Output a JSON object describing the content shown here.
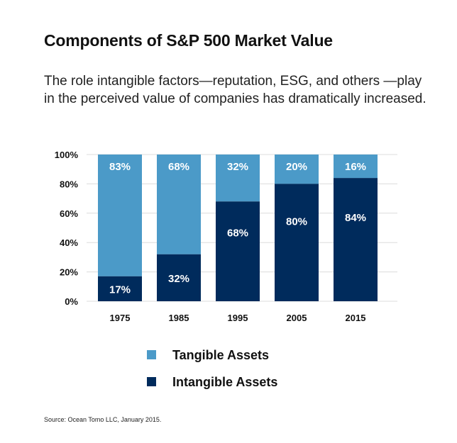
{
  "title": "Components of S&P 500 Market Value",
  "subtitle": "The role intangible factors—reputation, ESG, and others —play in the perceived value of companies has dramatically increased.",
  "source": "Source: Ocean Tomo LLC, January 2015.",
  "colors": {
    "tangible": "#4b9ac8",
    "intangible": "#002b5c",
    "grid": "#dcdcdc"
  },
  "chart_data": {
    "type": "bar",
    "stacked": true,
    "categories": [
      "1975",
      "1985",
      "1995",
      "2005",
      "2015"
    ],
    "series": [
      {
        "name": "Intangible Assets",
        "values": [
          17,
          32,
          68,
          80,
          84
        ],
        "labels": [
          "17%",
          "32%",
          "68%",
          "80%",
          "84%"
        ]
      },
      {
        "name": "Tangible Assets",
        "values": [
          83,
          68,
          32,
          20,
          16
        ],
        "labels": [
          "83%",
          "68%",
          "32%",
          "20%",
          "16%"
        ]
      }
    ],
    "y_ticks": [
      "0%",
      "20%",
      "40%",
      "60%",
      "80%",
      "100%"
    ],
    "ylim": [
      0,
      100
    ],
    "grid": true,
    "legend": {
      "placement": "bottom",
      "entries": [
        "Tangible Assets",
        "Intangible Assets"
      ]
    }
  }
}
